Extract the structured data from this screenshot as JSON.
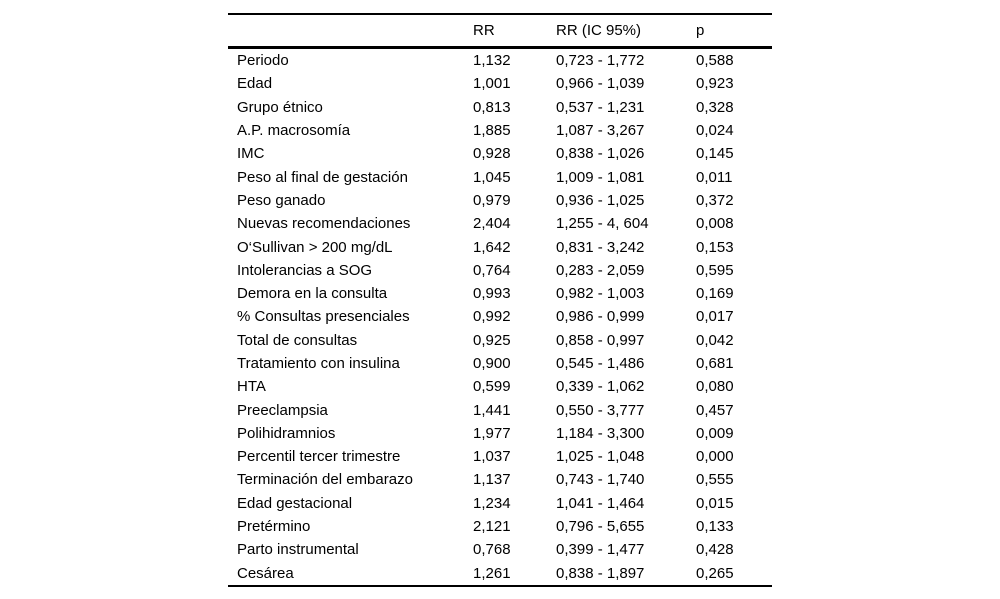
{
  "colors": {
    "background": "#ffffff",
    "text": "#000000",
    "rule": "#000000"
  },
  "table": {
    "headers": [
      "",
      "RR",
      "RR (IC 95%)",
      "p"
    ],
    "rows": [
      {
        "label": "Periodo",
        "rr": "1,132",
        "ci": "0,723 - 1,772",
        "p": "0,588"
      },
      {
        "label": "Edad",
        "rr": "1,001",
        "ci": "0,966 - 1,039",
        "p": "0,923"
      },
      {
        "label": "Grupo étnico",
        "rr": "0,813",
        "ci": "0,537 - 1,231",
        "p": "0,328"
      },
      {
        "label": "A.P. macrosomía",
        "rr": "1,885",
        "ci": "1,087 - 3,267",
        "p": "0,024"
      },
      {
        "label": "IMC",
        "rr": "0,928",
        "ci": "0,838 - 1,026",
        "p": "0,145"
      },
      {
        "label": "Peso al final de gestación",
        "rr": "1,045",
        "ci": "1,009 - 1,081",
        "p": "0,011"
      },
      {
        "label": "Peso ganado",
        "rr": "0,979",
        "ci": "0,936 - 1,025",
        "p": "0,372"
      },
      {
        "label": "Nuevas recomendaciones",
        "rr": "2,404",
        "ci": "1,255 - 4, 604",
        "p": "0,008"
      },
      {
        "label": "O‘Sullivan > 200 mg/dL",
        "rr": "1,642",
        "ci": "0,831 - 3,242",
        "p": "0,153"
      },
      {
        "label": "Intolerancias a SOG",
        "rr": "0,764",
        "ci": "0,283 - 2,059",
        "p": "0,595"
      },
      {
        "label": "Demora en la consulta",
        "rr": "0,993",
        "ci": "0,982 - 1,003",
        "p": "0,169"
      },
      {
        "label": "% Consultas presenciales",
        "rr": "0,992",
        "ci": "0,986 - 0,999",
        "p": "0,017"
      },
      {
        "label": "Total de consultas",
        "rr": "0,925",
        "ci": "0,858 - 0,997",
        "p": "0,042"
      },
      {
        "label": "Tratamiento con insulina",
        "rr": "0,900",
        "ci": "0,545 - 1,486",
        "p": "0,681"
      },
      {
        "label": "HTA",
        "rr": "0,599",
        "ci": "0,339 - 1,062",
        "p": "0,080"
      },
      {
        "label": "Preeclampsia",
        "rr": "1,441",
        "ci": "0,550 - 3,777",
        "p": "0,457"
      },
      {
        "label": "Polihidramnios",
        "rr": "1,977",
        "ci": "1,184 - 3,300",
        "p": "0,009"
      },
      {
        "label": "Percentil tercer trimestre",
        "rr": "1,037",
        "ci": "1,025 - 1,048",
        "p": "0,000"
      },
      {
        "label": "Terminación del embarazo",
        "rr": "1,137",
        "ci": "0,743 - 1,740",
        "p": "0,555"
      },
      {
        "label": "Edad gestacional",
        "rr": "1,234",
        "ci": "1,041 - 1,464",
        "p": "0,015"
      },
      {
        "label": "Pretérmino",
        "rr": "2,121",
        "ci": "0,796 - 5,655",
        "p": "0,133"
      },
      {
        "label": "Parto instrumental",
        "rr": "0,768",
        "ci": "0,399 - 1,477",
        "p": "0,428"
      },
      {
        "label": "Cesárea",
        "rr": "1,261",
        "ci": "0,838 - 1,897",
        "p": "0,265"
      }
    ]
  }
}
